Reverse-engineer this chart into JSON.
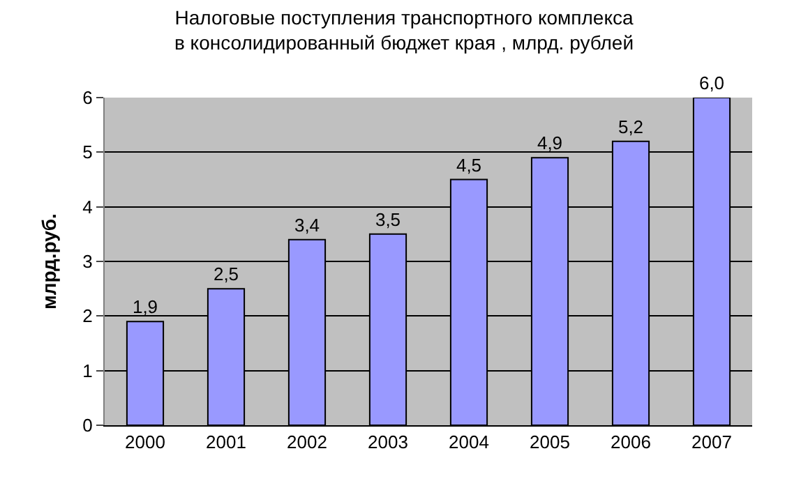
{
  "chart_data": {
    "type": "bar",
    "title": "Налоговые поступления транспортного комплекса\nв консолидированный бюджет края , млрд. рублей",
    "ylabel": "млрд.руб.",
    "categories": [
      "2000",
      "2001",
      "2002",
      "2003",
      "2004",
      "2005",
      "2006",
      "2007"
    ],
    "values": [
      1.9,
      2.5,
      3.4,
      3.5,
      4.5,
      4.9,
      5.2,
      6.0
    ],
    "value_labels": [
      "1,9",
      "2,5",
      "3,4",
      "3,5",
      "4,5",
      "4,9",
      "5,2",
      "6,0"
    ],
    "color": "#9999ff",
    "ylim": [
      0,
      6
    ],
    "yticks": [
      0,
      1,
      2,
      3,
      4,
      5,
      6
    ],
    "grid": "y"
  }
}
